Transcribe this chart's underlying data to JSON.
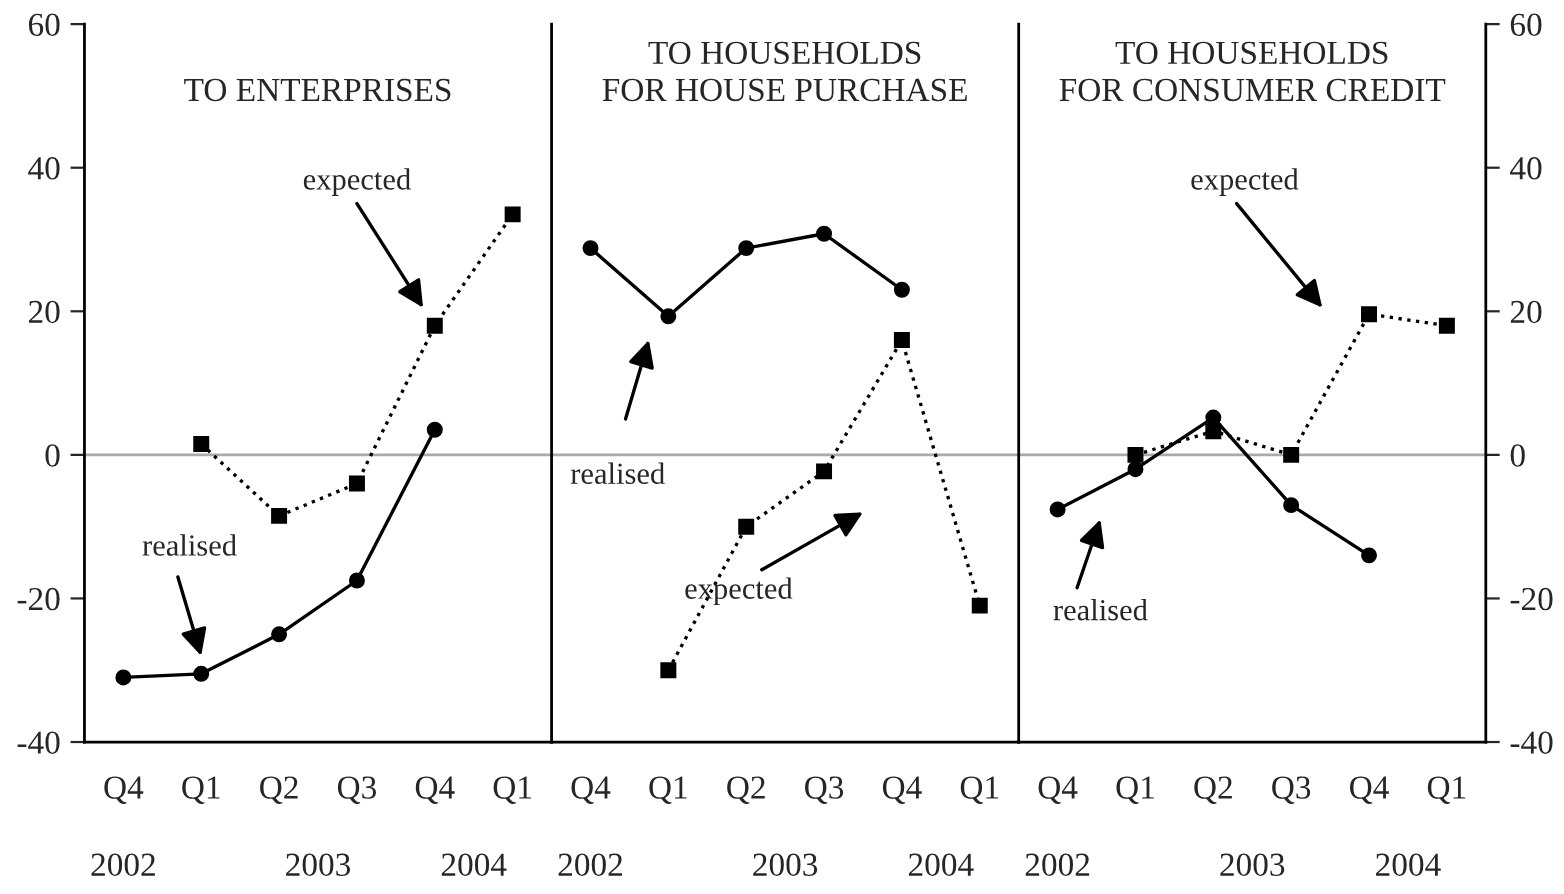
{
  "chart_data": [
    {
      "type": "line",
      "title": "TO ENTERPRISES",
      "categories": [
        "Q4",
        "Q1",
        "Q2",
        "Q3",
        "Q4",
        "Q1"
      ],
      "ylim": [
        -40,
        60
      ],
      "yticks": [
        -40,
        -20,
        0,
        20,
        40,
        60
      ],
      "ref_lines": [
        {
          "axis": "y",
          "value": 0,
          "color": "#aaaaaa"
        }
      ],
      "annotations": [
        "2002",
        "2003",
        "2004",
        "realised",
        "expected"
      ],
      "series": [
        {
          "color": "#000000",
          "marker": "circle",
          "line_style": "solid",
          "values": [
            -31,
            -30.5,
            -25,
            -17.5,
            3.5,
            null
          ]
        },
        {
          "color": "#000000",
          "marker": "square",
          "line_style": "dotted",
          "values": [
            null,
            1.5,
            -8.5,
            -4,
            18,
            33.5
          ]
        }
      ]
    },
    {
      "type": "line",
      "title": "TO HOUSEHOLDS\nFOR HOUSE PURCHASE",
      "categories": [
        "Q4",
        "Q1",
        "Q2",
        "Q3",
        "Q4",
        "Q1"
      ],
      "ylim": [
        -40,
        60
      ],
      "tick_labels": "x",
      "ref_lines": [
        {
          "axis": "y",
          "value": 0,
          "color": "#aaaaaa"
        }
      ],
      "annotations": [
        "2002",
        "2003",
        "2004",
        "realised",
        "expected"
      ],
      "series": [
        {
          "color": "#000000",
          "marker": "circle",
          "line_style": "solid",
          "values": [
            28.8,
            19.3,
            28.8,
            30.8,
            23,
            null
          ]
        },
        {
          "color": "#000000",
          "marker": "square",
          "line_style": "dotted",
          "values": [
            null,
            -30,
            -10,
            -2.3,
            16,
            -21
          ]
        }
      ]
    },
    {
      "type": "line",
      "title": "TO HOUSEHOLDS\nFOR CONSUMER CREDIT",
      "categories": [
        "Q4",
        "Q1",
        "Q2",
        "Q3",
        "Q4",
        "Q1"
      ],
      "ylim": [
        -40,
        60
      ],
      "yticks": [
        -40,
        -20,
        0,
        20,
        40,
        60
      ],
      "ref_lines": [
        {
          "axis": "y",
          "value": 0,
          "color": "#aaaaaa"
        }
      ],
      "annotations": [
        "2002",
        "2003",
        "2004",
        "realised",
        "expected"
      ],
      "series": [
        {
          "color": "#000000",
          "marker": "circle",
          "line_style": "solid",
          "values": [
            -7.6,
            -2,
            5.2,
            -7,
            -14,
            null
          ]
        },
        {
          "color": "#000000",
          "marker": "square",
          "line_style": "dotted",
          "values": [
            null,
            0,
            3.3,
            0,
            19.6,
            18
          ]
        }
      ]
    }
  ]
}
